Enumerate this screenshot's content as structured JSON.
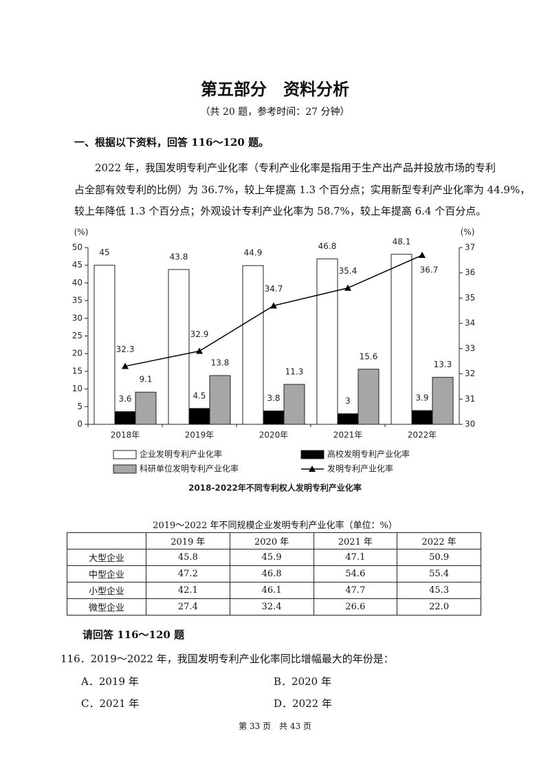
{
  "header": {
    "title": "第五部分　资料分析",
    "subtitle": "（共 20 题，参考时间：27 分钟）"
  },
  "section": {
    "heading": "一、根据以下资料，回答 116～120 题。",
    "paragraph": [
      "2022 年，我国发明专利产业化率（专利产业化率是指用于生产出产品并投放市场的专利",
      "占全部有效专利的比例）为 36.7%，较上年提高 1.3 个百分点；实用新型专利产业化率为 44.9%，",
      "较上年降低 1.3 个百分点；外观设计专利产业化率为 58.7%，较上年提高 6.4 个百分点。"
    ]
  },
  "chart_data": {
    "type": "bar",
    "title": "2018-2022年不同专利权人发明专利产业化率",
    "y_label": "(%)",
    "y2_label": "(%)",
    "categories": [
      "2018年",
      "2019年",
      "2020年",
      "2021年",
      "2022年"
    ],
    "ylim": [
      0,
      50
    ],
    "yticks": [
      0,
      5,
      10,
      15,
      20,
      25,
      30,
      35,
      40,
      45,
      50
    ],
    "y2lim": [
      30,
      37
    ],
    "y2ticks": [
      30,
      31,
      32,
      33,
      34,
      35,
      36,
      37
    ],
    "series": [
      {
        "name": "企业发明专利产业化率",
        "color": "#ffffff",
        "values": [
          45,
          43.8,
          44.9,
          46.8,
          48.1
        ]
      },
      {
        "name": "高校发明专利产业化率",
        "color": "#000000",
        "values": [
          3.6,
          4.5,
          3.8,
          3,
          3.9
        ]
      },
      {
        "name": "科研单位发明专利产业化率",
        "color": "#a6a6a6",
        "values": [
          9.1,
          13.8,
          11.3,
          15.6,
          13.3
        ]
      },
      {
        "name": "发明专利产业化率",
        "color": "#000000",
        "type": "line",
        "axis": "y2",
        "values": [
          32.3,
          32.9,
          34.7,
          35.4,
          36.7
        ]
      }
    ]
  },
  "table": {
    "title": "2019～2022 年不同规模企业发明专利产业化率（单位：%）",
    "columns": [
      "2019 年",
      "2020 年",
      "2021 年",
      "2022 年"
    ],
    "rows": [
      {
        "label": "大型企业",
        "values": [
          "45.8",
          "45.9",
          "47.1",
          "50.9"
        ]
      },
      {
        "label": "中型企业",
        "values": [
          "47.2",
          "46.8",
          "54.6",
          "55.4"
        ]
      },
      {
        "label": "小型企业",
        "values": [
          "42.1",
          "46.1",
          "47.7",
          "45.3"
        ]
      },
      {
        "label": "微型企业",
        "values": [
          "27.4",
          "32.4",
          "26.6",
          "22.0"
        ]
      }
    ]
  },
  "questions": {
    "prompt": "请回答 116～120 题",
    "items": [
      {
        "text": "116．2019～2022 年，我国发明专利产业化率同比增幅最大的年份是：",
        "options": [
          "A．2019 年",
          "B．2020 年",
          "C．2021 年",
          "D．2022 年"
        ]
      }
    ]
  },
  "footer": "第 33 页　共 43 页"
}
